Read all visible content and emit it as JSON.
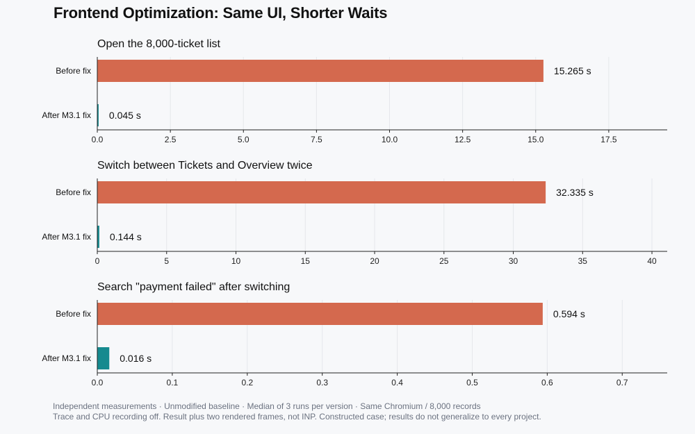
{
  "title": "Frontend Optimization: Same UI, Shorter Waits",
  "colors": {
    "before": "#d4694e",
    "after": "#168a8f",
    "axis": "#222222",
    "grid": "#e5e7eb"
  },
  "chart_data": [
    {
      "type": "bar",
      "orientation": "horizontal",
      "title": "Open the 8,000-ticket list",
      "categories": [
        "Before fix",
        "After M3.1 fix"
      ],
      "values": [
        15.265,
        0.045
      ],
      "value_labels": [
        "15.265 s",
        "0.045 s"
      ],
      "xlim": [
        0,
        19.5
      ],
      "xticks": [
        0.0,
        2.5,
        5.0,
        7.5,
        10.0,
        12.5,
        15.0,
        17.5
      ],
      "xtick_labels": [
        "0.0",
        "2.5",
        "5.0",
        "7.5",
        "10.0",
        "12.5",
        "15.0",
        "17.5"
      ],
      "grid": true
    },
    {
      "type": "bar",
      "orientation": "horizontal",
      "title": "Switch between Tickets and Overview twice",
      "categories": [
        "Before fix",
        "After M3.1 fix"
      ],
      "values": [
        32.335,
        0.144
      ],
      "value_labels": [
        "32.335 s",
        "0.144 s"
      ],
      "xlim": [
        0,
        41.1
      ],
      "xticks": [
        0,
        5,
        10,
        15,
        20,
        25,
        30,
        35,
        40
      ],
      "xtick_labels": [
        "0",
        "5",
        "10",
        "15",
        "20",
        "25",
        "30",
        "35",
        "40"
      ],
      "grid": true
    },
    {
      "type": "bar",
      "orientation": "horizontal",
      "title": "Search \"payment failed\" after switching",
      "categories": [
        "Before fix",
        "After M3.1 fix"
      ],
      "values": [
        0.594,
        0.016
      ],
      "value_labels": [
        "0.594 s",
        "0.016 s"
      ],
      "xlim": [
        0,
        0.76
      ],
      "xticks": [
        0.0,
        0.1,
        0.2,
        0.3,
        0.4,
        0.5,
        0.6,
        0.7
      ],
      "xtick_labels": [
        "0.0",
        "0.1",
        "0.2",
        "0.3",
        "0.4",
        "0.5",
        "0.6",
        "0.7"
      ],
      "grid": true
    }
  ],
  "footnote": {
    "line1": "Independent measurements · Unmodified baseline · Median of 3 runs per version · Same Chromium / 8,000 records",
    "line2": "Trace and CPU recording off. Result plus two rendered frames, not INP. Constructed case; results do not generalize to every project."
  }
}
